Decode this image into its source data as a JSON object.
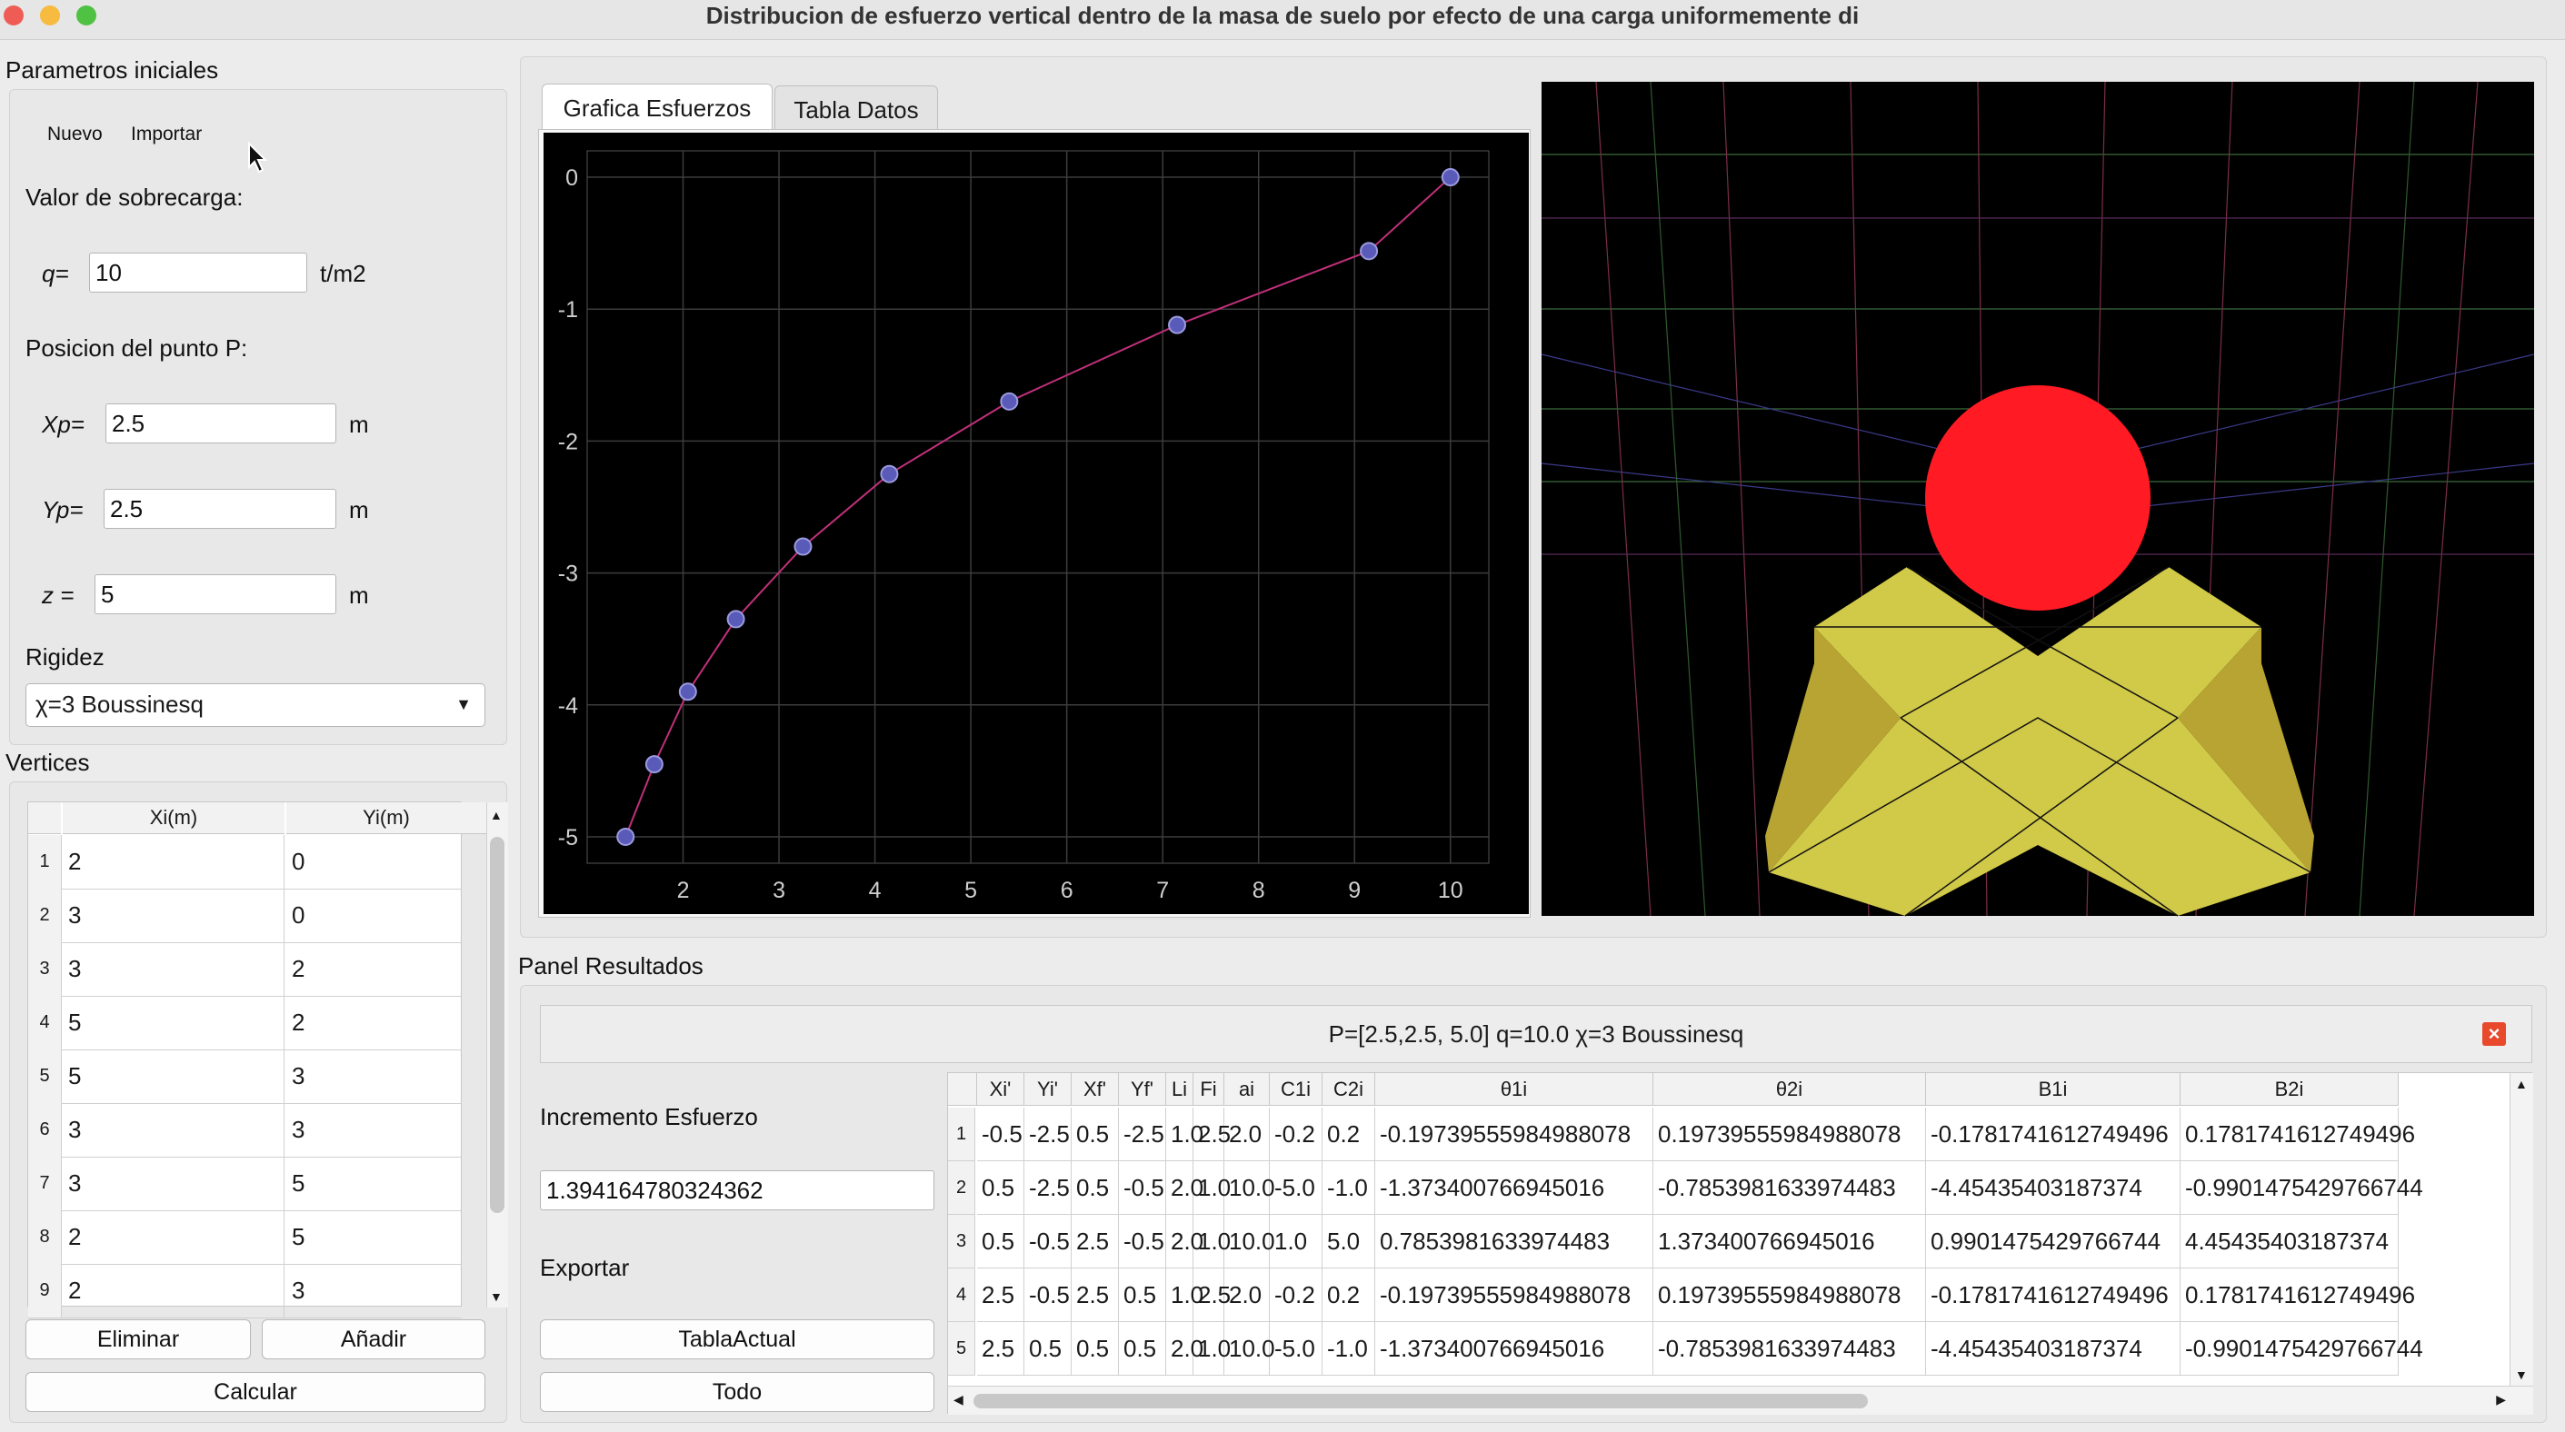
{
  "window": {
    "title": "Distribucion de esfuerzo vertical dentro de la masa de suelo por efecto de una carga uniformemente di",
    "traffic_lights": [
      "#ee5c55",
      "#f6bb3f",
      "#4fc143"
    ]
  },
  "params": {
    "group_title": "Parametros iniciales",
    "new_button": "Nuevo",
    "import_button": "Importar",
    "load_label": "Valor de sobrecarga:",
    "q_label": "q=",
    "q_value": "10",
    "q_unit": "t/m2",
    "position_label": "Posicion del punto P:",
    "xp_label": "Xp=",
    "xp_value": "2.5",
    "xp_unit": "m",
    "yp_label": "Yp=",
    "yp_value": "2.5",
    "yp_unit": "m",
    "z_label": "z =",
    "z_value": "5",
    "z_unit": "m",
    "rigidity_label": "Rigidez",
    "rigidity_value": "χ=3 Boussinesq"
  },
  "vertices": {
    "group_title": "Vertices",
    "headers": [
      "Xi(m)",
      "Yi(m)"
    ],
    "rows": [
      [
        "1",
        "2",
        "0"
      ],
      [
        "2",
        "3",
        "0"
      ],
      [
        "3",
        "3",
        "2"
      ],
      [
        "4",
        "5",
        "2"
      ],
      [
        "5",
        "5",
        "3"
      ],
      [
        "6",
        "3",
        "3"
      ],
      [
        "7",
        "3",
        "5"
      ],
      [
        "8",
        "2",
        "5"
      ],
      [
        "9",
        "2",
        "3"
      ]
    ],
    "delete_button": "Eliminar",
    "add_button": "Añadir",
    "calc_button": "Calcular"
  },
  "tabs": [
    "Grafica Esfuerzos",
    "Tabla Datos"
  ],
  "chart_data": {
    "type": "line",
    "x": [
      1.4,
      1.7,
      2.05,
      2.55,
      3.25,
      4.15,
      5.4,
      7.15,
      9.15,
      10.0
    ],
    "y": [
      -5.0,
      -4.45,
      -3.9,
      -3.35,
      -2.8,
      -2.25,
      -1.7,
      -1.12,
      -0.56,
      0.0
    ],
    "xlim": [
      1.0,
      10.4
    ],
    "ylim": [
      -5.2,
      0.2
    ],
    "xticks": [
      "2",
      "3",
      "4",
      "5",
      "6",
      "7",
      "8",
      "9",
      "10"
    ],
    "yticks": [
      "0",
      "-1",
      "-2",
      "-3",
      "-4",
      "-5"
    ],
    "grid": true,
    "line_color": "#c0307a",
    "marker_color": "#5a5ab8"
  },
  "results": {
    "group_title": "Panel Resultados",
    "header": "P=[2.5,2.5, 5.0] q=10.0 χ=3 Boussinesq",
    "close_glyph": "×",
    "increment_label": "Incremento Esfuerzo",
    "increment_value": "1.394164780324362",
    "export_label": "Exportar",
    "export_current_button": "TablaActual",
    "export_all_button": "Todo",
    "table": {
      "headers": [
        "Xi'",
        "Yi'",
        "Xf'",
        "Yf'",
        "Li",
        "Fi",
        "ai",
        "C1i",
        "C2i",
        "θ1i",
        "θ2i",
        "B1i",
        "B2i"
      ],
      "rows": [
        [
          "1",
          "-0.5",
          "-2.5",
          "0.5",
          "-2.5",
          "1.0",
          "2.5",
          "2.0",
          "-0.2",
          "0.2",
          "-0.19739555984988078",
          "0.19739555984988078",
          "-0.1781741612749496",
          "0.1781741612749496"
        ],
        [
          "2",
          "0.5",
          "-2.5",
          "0.5",
          "-0.5",
          "2.0",
          "1.0",
          "10.0",
          "-5.0",
          "-1.0",
          "-1.373400766945016",
          "-0.7853981633974483",
          "-4.45435403187374",
          "-0.9901475429766744"
        ],
        [
          "3",
          "0.5",
          "-0.5",
          "2.5",
          "-0.5",
          "2.0",
          "1.0",
          "10.0",
          "1.0",
          "5.0",
          "0.7853981633974483",
          "1.373400766945016",
          "0.9901475429766744",
          "4.45435403187374"
        ],
        [
          "4",
          "2.5",
          "-0.5",
          "2.5",
          "0.5",
          "1.0",
          "2.5",
          "2.0",
          "-0.2",
          "0.2",
          "-0.19739555984988078",
          "0.19739555984988078",
          "-0.1781741612749496",
          "0.1781741612749496"
        ],
        [
          "5",
          "2.5",
          "0.5",
          "0.5",
          "0.5",
          "2.0",
          "1.0",
          "10.0",
          "-5.0",
          "-1.0",
          "-1.373400766945016",
          "-0.7853981633974483",
          "-4.45435403187374",
          "-0.9901475429766744"
        ]
      ]
    }
  }
}
